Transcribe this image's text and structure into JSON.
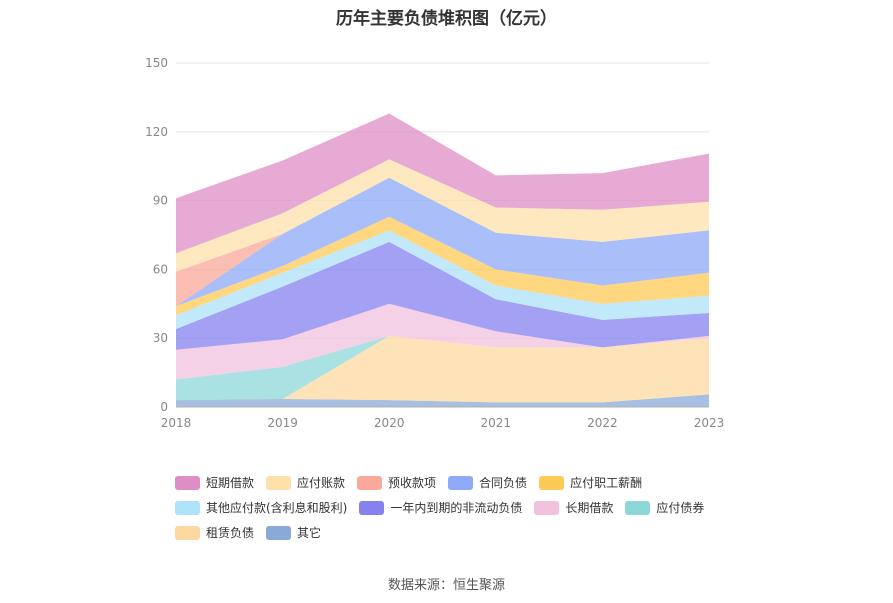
{
  "title": "历年主要负债堆积图（亿元）",
  "source": "数据来源：恒生聚源",
  "chart_data": {
    "type": "area",
    "stacked": true,
    "x": [
      "2018",
      "2019",
      "2020",
      "2021",
      "2022",
      "2023"
    ],
    "ylim": [
      0,
      150
    ],
    "yticks": [
      "0",
      "30",
      "60",
      "90",
      "120",
      "150"
    ],
    "grid": true,
    "legend_position": "bottom",
    "series": [
      {
        "name": "其它",
        "color": "#8aa9d6",
        "values": [
          3,
          3.5,
          3,
          2,
          2,
          5.5
        ]
      },
      {
        "name": "租赁负债",
        "color": "#fdd8a0",
        "values": [
          0,
          0,
          28,
          24,
          24,
          24.5
        ]
      },
      {
        "name": "应付债券",
        "color": "#8dd7d9",
        "values": [
          9,
          14,
          0,
          0,
          0,
          0
        ]
      },
      {
        "name": "长期借款",
        "color": "#f0c2de",
        "values": [
          13,
          12,
          14,
          7,
          0,
          1
        ]
      },
      {
        "name": "一年内到期的非流动负债",
        "color": "#8582f0",
        "values": [
          9,
          23,
          27,
          14,
          12,
          10
        ]
      },
      {
        "name": "其他应付款(含利息和股利)",
        "color": "#aee2f8",
        "values": [
          6,
          6,
          5,
          6,
          7,
          7.5
        ]
      },
      {
        "name": "应付职工薪酬",
        "color": "#fdca55",
        "values": [
          4,
          3,
          6,
          7,
          8,
          10
        ]
      },
      {
        "name": "合同负债",
        "color": "#8eaaf8",
        "values": [
          0,
          14,
          17,
          16,
          19,
          18.5
        ]
      },
      {
        "name": "预收款项",
        "color": "#f9a89a",
        "values": [
          15,
          0,
          0,
          0,
          0,
          0
        ]
      },
      {
        "name": "应付账款",
        "color": "#fde0aa",
        "values": [
          8,
          9,
          8,
          11,
          14,
          12.5
        ]
      },
      {
        "name": "短期借款",
        "color": "#de8ec5",
        "values": [
          24,
          23,
          20,
          14,
          16,
          21
        ]
      }
    ]
  },
  "legend_rows": [
    [
      "短期借款",
      "应付账款",
      "预收款项",
      "合同负债",
      "应付职工薪酬"
    ],
    [
      "其他应付款(含利息和股利)",
      "一年内到期的非流动负债",
      "长期借款",
      "应付债券"
    ],
    [
      "租赁负债",
      "其它"
    ]
  ]
}
